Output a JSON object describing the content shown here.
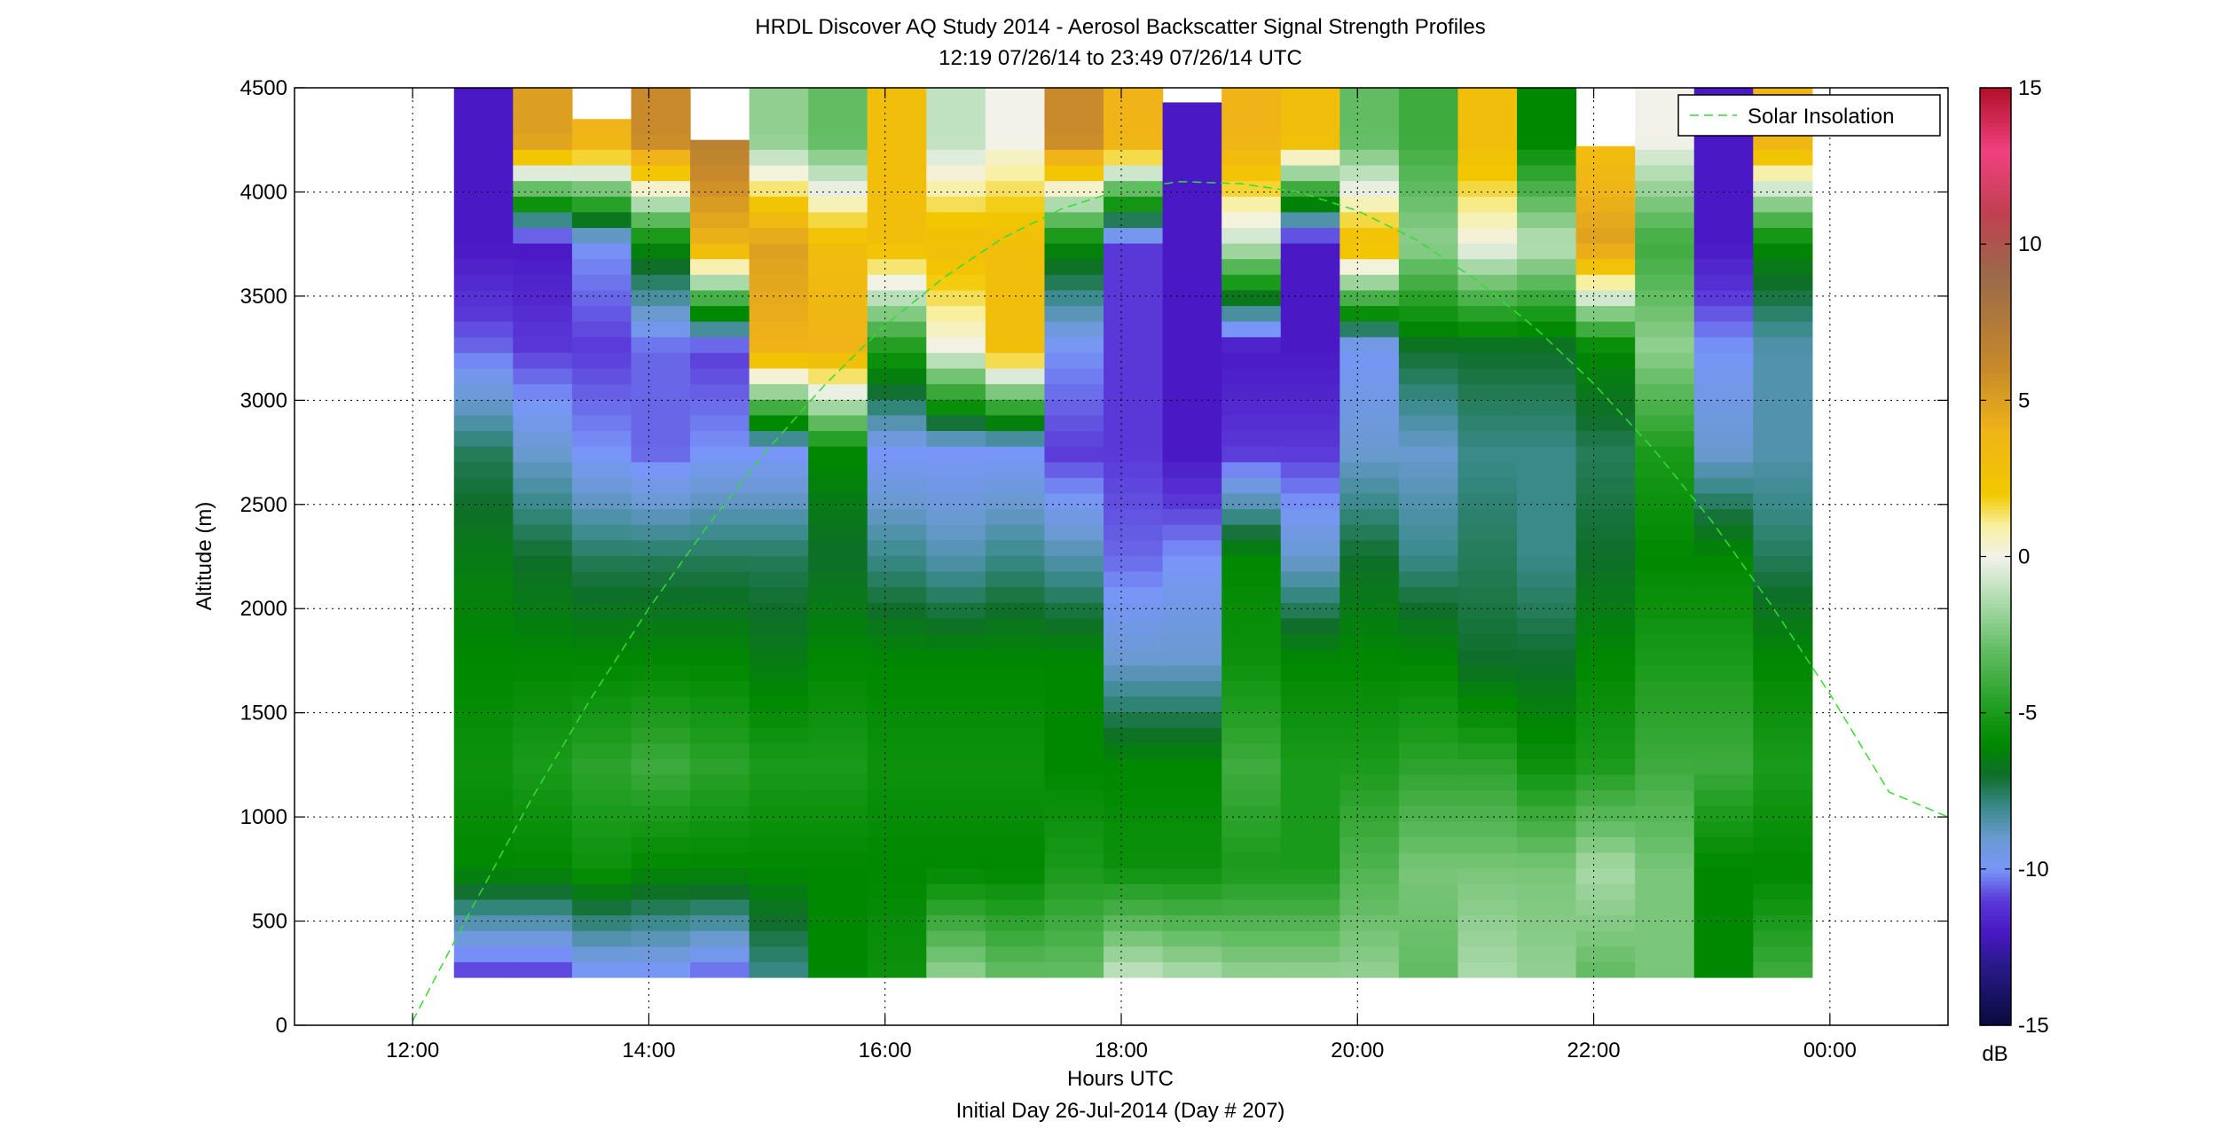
{
  "chart_data": {
    "type": "heatmap",
    "title": "HRDL Discover AQ Study 2014 - Aerosol Backscatter Signal Strength Profiles",
    "subtitle": "12:19 07/26/14 to 23:49 07/26/14  UTC",
    "xlabel": "Hours UTC",
    "xlabel2": "Initial Day 26-Jul-2014 (Day # 207)",
    "ylabel": "Altitude (m)",
    "xlim": [
      11.0,
      25.0
    ],
    "ylim": [
      0,
      4500
    ],
    "grid": true,
    "x_ticks": [
      12,
      14,
      16,
      18,
      20,
      22,
      24
    ],
    "x_tick_labels": [
      "12:00",
      "14:00",
      "16:00",
      "18:00",
      "20:00",
      "22:00",
      "00:00"
    ],
    "y_ticks": [
      0,
      500,
      1000,
      1500,
      2000,
      2500,
      3000,
      3500,
      4000,
      4500
    ],
    "y_tick_labels": [
      "0",
      "500",
      "1000",
      "1500",
      "2000",
      "2500",
      "3000",
      "3500",
      "4000",
      "4500"
    ],
    "colorbar": {
      "label": "dB",
      "range": [
        -15,
        15
      ],
      "ticks": [
        15,
        10,
        5,
        0,
        -5,
        -10,
        -15
      ],
      "tick_labels": [
        "15",
        "10",
        "5",
        "0",
        "-5",
        "-10",
        "-15"
      ],
      "stops": [
        {
          "v": -15,
          "c": "#0a0a3c"
        },
        {
          "v": -13,
          "c": "#2a1a8c"
        },
        {
          "v": -12,
          "c": "#4a18c4"
        },
        {
          "v": -11,
          "c": "#5a38d8"
        },
        {
          "v": -10,
          "c": "#7896f8"
        },
        {
          "v": -9,
          "c": "#6a9ad0"
        },
        {
          "v": -8,
          "c": "#3a8a8a"
        },
        {
          "v": -7,
          "c": "#0f6e2a"
        },
        {
          "v": -6,
          "c": "#008800"
        },
        {
          "v": -5,
          "c": "#1a9a1a"
        },
        {
          "v": -3,
          "c": "#62bc62"
        },
        {
          "v": -1,
          "c": "#c0e2c0"
        },
        {
          "v": 0,
          "c": "#f2f2ea"
        },
        {
          "v": 1,
          "c": "#f8f0a0"
        },
        {
          "v": 2,
          "c": "#f2c800"
        },
        {
          "v": 4,
          "c": "#f0b418"
        },
        {
          "v": 6,
          "c": "#c88a2a"
        },
        {
          "v": 9,
          "c": "#9a6a4a"
        },
        {
          "v": 11,
          "c": "#c04050"
        },
        {
          "v": 13,
          "c": "#f04080"
        },
        {
          "v": 15,
          "c": "#b01028"
        }
      ]
    },
    "profile_altitude_range": [
      230,
      4500
    ],
    "profile_altitudes_m": [
      250,
      750,
      1250,
      1750,
      2250,
      2750,
      3250,
      3750,
      4250
    ],
    "profiles": [
      {
        "start": 12.35,
        "end": 12.85,
        "top": 4500,
        "values_db": [
          -11,
          -6,
          -5.5,
          -6,
          -6.5,
          -7.5,
          -10.5,
          -12,
          -12
        ]
      },
      {
        "start": 12.85,
        "end": 13.35,
        "top": 4500,
        "values_db": [
          -11,
          -6,
          -5,
          -6,
          -7,
          -9,
          -11,
          -12,
          5
        ]
      },
      {
        "start": 13.35,
        "end": 13.85,
        "top": 4350,
        "values_db": [
          -10,
          -5.5,
          -4.5,
          -6,
          -7.5,
          -10,
          -11,
          -10,
          4
        ]
      },
      {
        "start": 13.85,
        "end": 14.35,
        "top": 4500,
        "values_db": [
          -10,
          -6,
          -4,
          -6,
          -7.5,
          -10.5,
          -10.5,
          -6,
          6
        ]
      },
      {
        "start": 14.35,
        "end": 14.85,
        "top": 4250,
        "values_db": [
          -10.5,
          -6,
          -4.5,
          -6,
          -7.5,
          -10,
          -11,
          4,
          7
        ]
      },
      {
        "start": 14.85,
        "end": 15.35,
        "top": 4500,
        "values_db": [
          -8,
          -6,
          -5,
          -6.5,
          -7.5,
          -10,
          4,
          5,
          -2
        ]
      },
      {
        "start": 15.35,
        "end": 15.85,
        "top": 4500,
        "values_db": [
          -6,
          -6,
          -5,
          -6,
          -7,
          -6,
          4,
          3,
          -3
        ]
      },
      {
        "start": 15.85,
        "end": 16.35,
        "top": 4500,
        "values_db": [
          -5.5,
          -6,
          -5.5,
          -6,
          -8,
          -10,
          -5,
          3,
          3
        ]
      },
      {
        "start": 16.35,
        "end": 16.85,
        "top": 4500,
        "values_db": [
          -2,
          -6,
          -5.5,
          -6,
          -8.5,
          -10,
          0,
          3,
          -1
        ]
      },
      {
        "start": 16.85,
        "end": 17.35,
        "top": 4500,
        "values_db": [
          -3,
          -6,
          -5.5,
          -6,
          -8,
          -10,
          3,
          3,
          0
        ]
      },
      {
        "start": 17.35,
        "end": 17.85,
        "top": 4500,
        "values_db": [
          -3,
          -5,
          -6,
          -6,
          -8.5,
          -11,
          -10,
          -6,
          6
        ]
      },
      {
        "start": 17.85,
        "end": 18.35,
        "top": 4500,
        "values_db": [
          -1,
          -5.5,
          -6,
          -9,
          -10.5,
          -11,
          -11,
          -11,
          4
        ]
      },
      {
        "start": 18.35,
        "end": 18.85,
        "top": 4430,
        "values_db": [
          -1.5,
          -5.5,
          -6,
          -9,
          -10,
          -12,
          -12,
          -12,
          -12
        ]
      },
      {
        "start": 18.85,
        "end": 19.35,
        "top": 4500,
        "values_db": [
          -2,
          -5,
          -4,
          -5.5,
          -6,
          -11,
          -12,
          -1,
          4
        ]
      },
      {
        "start": 19.35,
        "end": 19.85,
        "top": 4500,
        "values_db": [
          -2,
          -5,
          -5,
          -6,
          -9,
          -11,
          -12,
          -12,
          3
        ]
      },
      {
        "start": 19.85,
        "end": 20.35,
        "top": 4500,
        "values_db": [
          -2,
          -3.5,
          -5,
          -6,
          -7,
          -9,
          -10,
          3,
          -3
        ]
      },
      {
        "start": 20.35,
        "end": 20.85,
        "top": 4500,
        "values_db": [
          -3,
          -2.5,
          -4.5,
          -6,
          -8,
          -9,
          -7,
          -2,
          -4
        ]
      },
      {
        "start": 20.85,
        "end": 21.35,
        "top": 4500,
        "values_db": [
          -1.5,
          -2.5,
          -4.5,
          -7,
          -7.5,
          -8,
          -7,
          0,
          3
        ]
      },
      {
        "start": 21.35,
        "end": 21.85,
        "top": 4500,
        "values_db": [
          -2,
          -2.5,
          -5.5,
          -7,
          -8,
          -8,
          -7,
          -1,
          -6
        ]
      },
      {
        "start": 21.85,
        "end": 22.35,
        "top": 4220,
        "values_db": [
          -3,
          -1.5,
          -5,
          -6,
          -7,
          -7.5,
          -6,
          5,
          3
        ]
      },
      {
        "start": 22.35,
        "end": 22.85,
        "top": 4500,
        "values_db": [
          -2.5,
          -2.5,
          -4,
          -5,
          -6,
          -5,
          -2,
          -4,
          0
        ]
      },
      {
        "start": 22.85,
        "end": 23.35,
        "top": 4500,
        "values_db": [
          -6,
          -6,
          -4,
          -5,
          -6,
          -9,
          -10,
          -12,
          -12
        ]
      },
      {
        "start": 23.35,
        "end": 23.85,
        "top": 4500,
        "values_db": [
          -4,
          -6,
          -5,
          -6,
          -7.5,
          -8.5,
          -8.5,
          -6,
          4
        ]
      }
    ],
    "series": [
      {
        "name": "Solar Insolation",
        "color": "#33dd33",
        "style": "dashed",
        "x": [
          12.0,
          12.5,
          13.0,
          13.5,
          14.0,
          14.5,
          15.0,
          15.5,
          16.0,
          16.5,
          17.0,
          17.5,
          18.0,
          18.5,
          19.0,
          19.5,
          20.0,
          20.5,
          21.0,
          21.5,
          22.0,
          22.5,
          23.0,
          23.5,
          24.0,
          24.5,
          25.0
        ],
        "y": [
          20,
          560,
          1080,
          1560,
          2000,
          2400,
          2760,
          3080,
          3360,
          3590,
          3780,
          3920,
          4010,
          4050,
          4040,
          4000,
          3910,
          3770,
          3580,
          3350,
          3080,
          2770,
          2420,
          2020,
          1590,
          1120,
          1000
        ]
      }
    ],
    "legend": {
      "position": "top-right",
      "entries": [
        "Solar Insolation"
      ]
    }
  }
}
